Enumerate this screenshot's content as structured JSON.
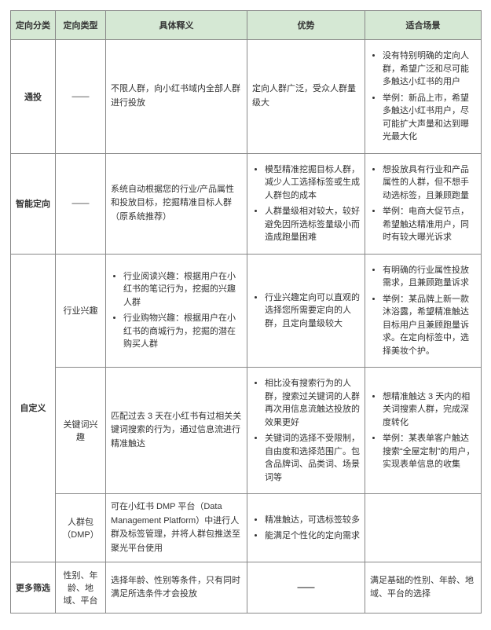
{
  "colors": {
    "header_bg": "#d5e8d4",
    "border": "#888888",
    "text": "#333333"
  },
  "headers": [
    "定向分类",
    "定向类型",
    "具体释义",
    "优势",
    "适合场景"
  ],
  "rows": [
    {
      "category": "通投",
      "type": "——",
      "definition": {
        "mode": "plain",
        "text": "不限人群，向小红书域内全部人群进行投放"
      },
      "advantage": {
        "mode": "plain",
        "text": "定向人群广泛，受众人群量级大"
      },
      "scene": {
        "mode": "list",
        "items": [
          "没有特别明确的定向人群，希望广泛和尽可能多触达小红书的用户",
          "举例：新品上市，希望多触达小红书用户，尽可能扩大声量和达到曝光最大化"
        ]
      }
    },
    {
      "category": "智能定向",
      "type": "——",
      "definition": {
        "mode": "plain",
        "text": "系统自动根据您的行业/产品属性和投放目标，挖掘精准目标人群（原系统推荐）"
      },
      "advantage": {
        "mode": "list",
        "items": [
          "模型精准挖掘目标人群，减少人工选择标签或生成人群包的成本",
          "人群量级相对较大，较好避免因所选标签量级小而造成跑量困难"
        ]
      },
      "scene": {
        "mode": "list",
        "items": [
          "想投放具有行业和产品属性的人群，但不想手动选标签，且兼顾跑量",
          "举例：电商大促节点，希望触达精准用户，同时有较大曝光诉求"
        ]
      }
    },
    {
      "category": "自定义",
      "subrows": [
        {
          "type": "行业兴趣",
          "definition": {
            "mode": "list",
            "items": [
              "行业阅读兴趣：根据用户在小红书的笔记行为，挖掘的兴趣人群",
              "行业购物兴趣：根据用户在小红书的商城行为，挖掘的潜在购买人群"
            ]
          },
          "advantage": {
            "mode": "list",
            "items": [
              "行业兴趣定向可以直观的选择您所需要定向的人群，且定向量级较大"
            ]
          },
          "scene": {
            "mode": "list",
            "items": [
              "有明确的行业属性投放需求，且兼顾跑量诉求",
              "举例：某品牌上新一款沐浴露，希望精准触达目标用户且兼顾跑量诉求。在定向标签中，选择美妆个护。"
            ]
          }
        },
        {
          "type": "关键词兴趣",
          "definition": {
            "mode": "plain",
            "text": "匹配过去 3 天在小红书有过相关关键词搜索的行为，通过信息流进行精准触达"
          },
          "advantage": {
            "mode": "list",
            "items": [
              "相比没有搜索行为的人群，搜索过关键词的人群再次用信息流触达投放的效果更好",
              "关键词的选择不受限制，自由度和选择范围广。包含品牌词、品类词、场景词等"
            ]
          },
          "scene": {
            "mode": "list",
            "items": [
              "想精准触达 3 天内的相关词搜索人群，完成深度转化",
              "举例：某表单客户触达搜索“全屋定制”的用户，实现表单信息的收集"
            ]
          }
        },
        {
          "type": "人群包（DMP）",
          "definition": {
            "mode": "plain",
            "text": "可在小红书 DMP 平台（Data Management Platform）中进行人群及标签管理，并将人群包推送至聚光平台使用"
          },
          "advantage": {
            "mode": "list",
            "items": [
              "精准触达，可选标签较多",
              "能满足个性化的定向需求"
            ]
          },
          "scene": {
            "mode": "empty"
          }
        }
      ]
    },
    {
      "category": "更多筛选",
      "type": "性别、年龄、地域、平台",
      "definition": {
        "mode": "plain",
        "text": "选择年龄、性别等条件，只有同时满足所选条件才会投放"
      },
      "advantage": {
        "mode": "dash"
      },
      "scene": {
        "mode": "plain",
        "text": "满足基础的性别、年龄、地域、平台的选择"
      }
    }
  ]
}
